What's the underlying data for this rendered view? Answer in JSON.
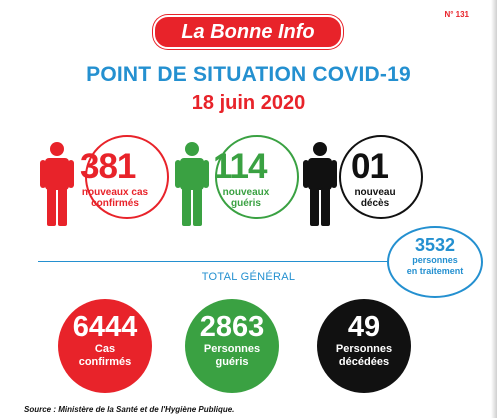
{
  "header": {
    "issue_number": "N° 131",
    "brand": "La Bonne Info",
    "title": "POINT DE SITUATION COVID-19",
    "date": "18 juin 2020"
  },
  "daily": {
    "cases": {
      "value": "381",
      "line1": "nouveaux cas",
      "line2": "confirmés",
      "color": "#e8232a"
    },
    "recovered": {
      "value": "114",
      "line1": "nouveaux",
      "line2": "guéris",
      "color": "#3aa142"
    },
    "deaths": {
      "value": "01",
      "line1": "nouveau",
      "line2": "décès",
      "color": "#111111"
    }
  },
  "in_treatment": {
    "value": "3532",
    "line1": "personnes",
    "line2": "en traitement",
    "color": "#2490d0"
  },
  "totals": {
    "label": "TOTAL GÉNÉRAL",
    "cases": {
      "value": "6444",
      "line1": "Cas",
      "line2": "confirmés",
      "color": "#e8232a"
    },
    "recovered": {
      "value": "2863",
      "line1": "Personnes",
      "line2": "guéris",
      "color": "#3aa142"
    },
    "deaths": {
      "value": "49",
      "line1": "Personnes",
      "line2": "décédées",
      "color": "#111111"
    }
  },
  "footer": {
    "source": "Source : Ministère de la Santé et de l'Hygiène Publique."
  }
}
